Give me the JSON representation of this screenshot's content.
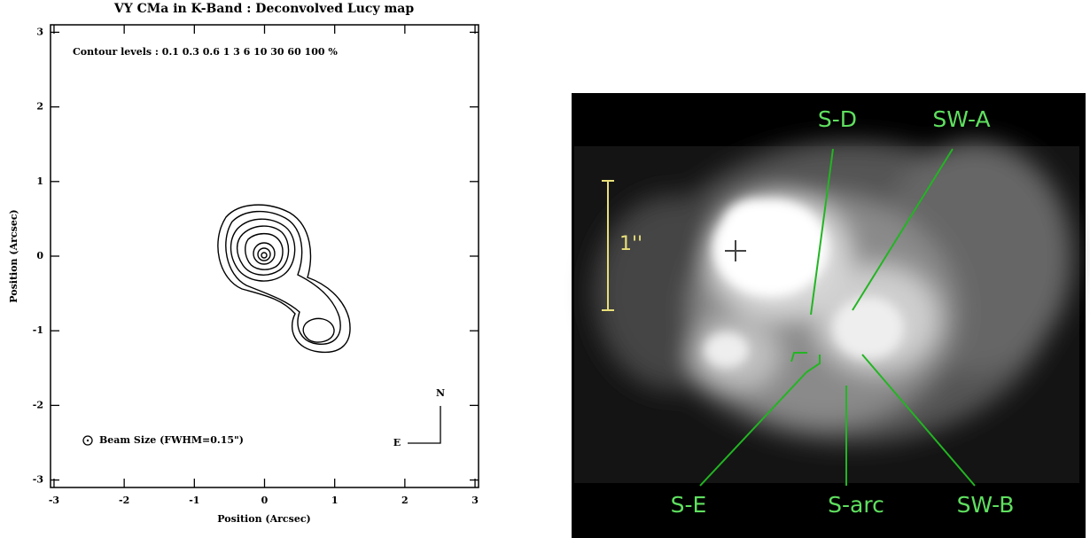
{
  "chart_data": {
    "type": "contour",
    "title": "VY CMa in K-Band : Deconvolved Lucy map",
    "xlabel": "Position (Arcsec)",
    "ylabel": "Position (Arcsec)",
    "xlim": [
      -3.05,
      3.05
    ],
    "ylim": [
      -3.1,
      3.1
    ],
    "xticks": [
      -3,
      -2,
      -1,
      0,
      1,
      2,
      3
    ],
    "yticks": [
      -3,
      -2,
      -1,
      0,
      1,
      2,
      3
    ],
    "annotations": [
      "Contour levels : 0.1 0.3 0.6 1 3 6 10 30 60 100 %",
      "Beam Size (FWHM=0.15\")",
      "N",
      "E"
    ]
  },
  "image": {
    "labels": [
      "S-D",
      "SW-A",
      "1''",
      "S-E",
      "S-arc",
      "SW-B"
    ]
  }
}
